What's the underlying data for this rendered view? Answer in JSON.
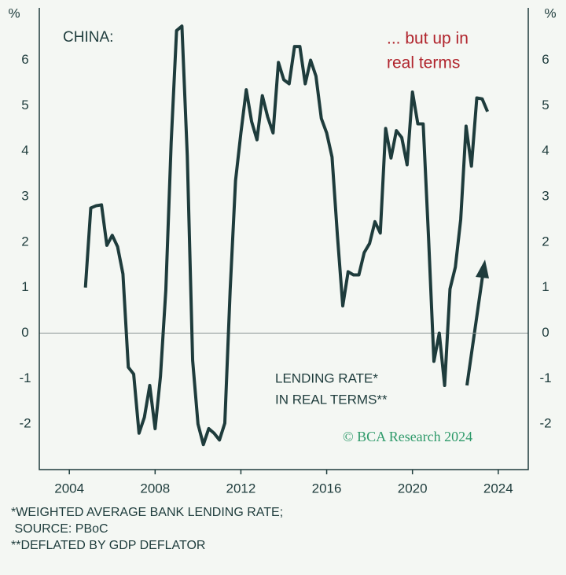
{
  "chart_data": {
    "type": "line",
    "title": "CHINA:",
    "subtitle": [
      "... but up in",
      "real terms"
    ],
    "ylabel": "%",
    "y2label": "%",
    "annotation": [
      "LENDING RATE*",
      "IN REAL TERMS**"
    ],
    "credit": "© BCA Research 2024",
    "footnotes": [
      "*WEIGHTED AVERAGE BANK LENDING RATE;",
      " SOURCE: PBoC",
      "**DEFLATED BY GDP DEFLATOR"
    ],
    "xlim": [
      2002.6,
      2025.4
    ],
    "xticks": [
      2004,
      2008,
      2012,
      2016,
      2020,
      2024
    ],
    "ylim": [
      -3,
      7.15
    ],
    "yticks": [
      -2,
      -1,
      0,
      1,
      2,
      3,
      4,
      5,
      6
    ],
    "x": [
      2004.75,
      2005,
      2005.25,
      2005.5,
      2005.75,
      2006,
      2006.25,
      2006.5,
      2006.75,
      2007,
      2007.25,
      2007.5,
      2007.75,
      2008,
      2008.25,
      2008.5,
      2008.75,
      2009,
      2009.25,
      2009.5,
      2009.75,
      2010,
      2010.25,
      2010.5,
      2010.75,
      2011,
      2011.25,
      2011.5,
      2011.75,
      2012,
      2012.25,
      2012.5,
      2012.75,
      2013,
      2013.25,
      2013.5,
      2013.75,
      2014,
      2014.25,
      2014.5,
      2014.75,
      2015,
      2015.25,
      2015.5,
      2015.75,
      2016,
      2016.25,
      2016.5,
      2016.75,
      2017,
      2017.25,
      2017.5,
      2017.75,
      2018,
      2018.25,
      2018.5,
      2018.75,
      2019,
      2019.25,
      2019.5,
      2019.75,
      2020,
      2020.25,
      2020.5,
      2020.75,
      2021,
      2021.25,
      2021.5,
      2021.75,
      2022,
      2022.25,
      2022.5,
      2022.75,
      2023,
      2023.25,
      2023.5
    ],
    "series": [
      {
        "name": "Lending rate in real terms",
        "color": "#1e3c3c",
        "values": [
          1.0,
          2.75,
          2.8,
          2.82,
          1.93,
          2.15,
          1.9,
          1.3,
          -0.75,
          -0.9,
          -2.2,
          -1.85,
          -1.15,
          -2.1,
          -0.95,
          0.95,
          4.2,
          6.65,
          6.75,
          3.9,
          -0.6,
          -2.0,
          -2.45,
          -2.1,
          -2.2,
          -2.35,
          -1.98,
          0.95,
          3.35,
          4.4,
          5.35,
          4.65,
          4.25,
          5.22,
          4.75,
          4.4,
          5.95,
          5.57,
          5.48,
          6.3,
          6.3,
          5.48,
          6.0,
          5.65,
          4.72,
          4.4,
          3.87,
          2.15,
          0.6,
          1.35,
          1.28,
          1.28,
          1.77,
          1.97,
          2.45,
          2.2,
          4.5,
          3.85,
          4.45,
          4.3,
          3.7,
          5.3,
          4.6,
          4.6,
          2.1,
          -0.62,
          0.0,
          -1.15,
          0.97,
          1.45,
          2.5,
          4.55,
          3.67,
          5.17,
          5.15,
          4.87
        ]
      }
    ]
  }
}
